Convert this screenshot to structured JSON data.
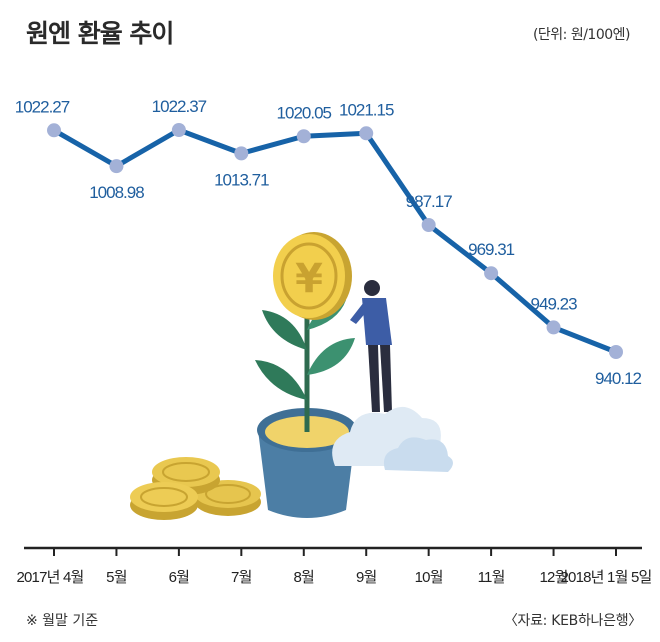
{
  "header": {
    "title": "원엔 환율 추이",
    "unit": "(단위: 원/100엔)"
  },
  "footer": {
    "note": "※ 월말 기준",
    "source": "〈자료: KEB하나은행〉"
  },
  "colors": {
    "line": "#1763a8",
    "marker": "#a3b1d7",
    "label": "#1f5e9e",
    "axis": "#222222"
  },
  "illustration": {
    "description_icon": "yen-coin-plant-icon"
  },
  "chart_data": {
    "type": "line",
    "title": "원엔 환율 추이",
    "categories": [
      "2017년 4월",
      "5월",
      "6월",
      "7월",
      "8월",
      "9월",
      "10월",
      "11월",
      "12월",
      "2018년 1월 5일"
    ],
    "values": [
      1022.27,
      1008.98,
      1022.37,
      1013.71,
      1020.05,
      1021.15,
      987.17,
      969.31,
      949.23,
      940.12
    ],
    "labels": [
      "1022.27",
      "1008.98",
      "1022.37",
      "1013.71",
      "1020.05",
      "1021.15",
      "987.17",
      "969.31",
      "949.23",
      "940.12"
    ],
    "label_position": [
      "above",
      "below",
      "above",
      "below",
      "above",
      "above",
      "above",
      "above",
      "above",
      "below"
    ],
    "ylim": [
      900,
      1045
    ],
    "grid": false,
    "legend": "none"
  }
}
